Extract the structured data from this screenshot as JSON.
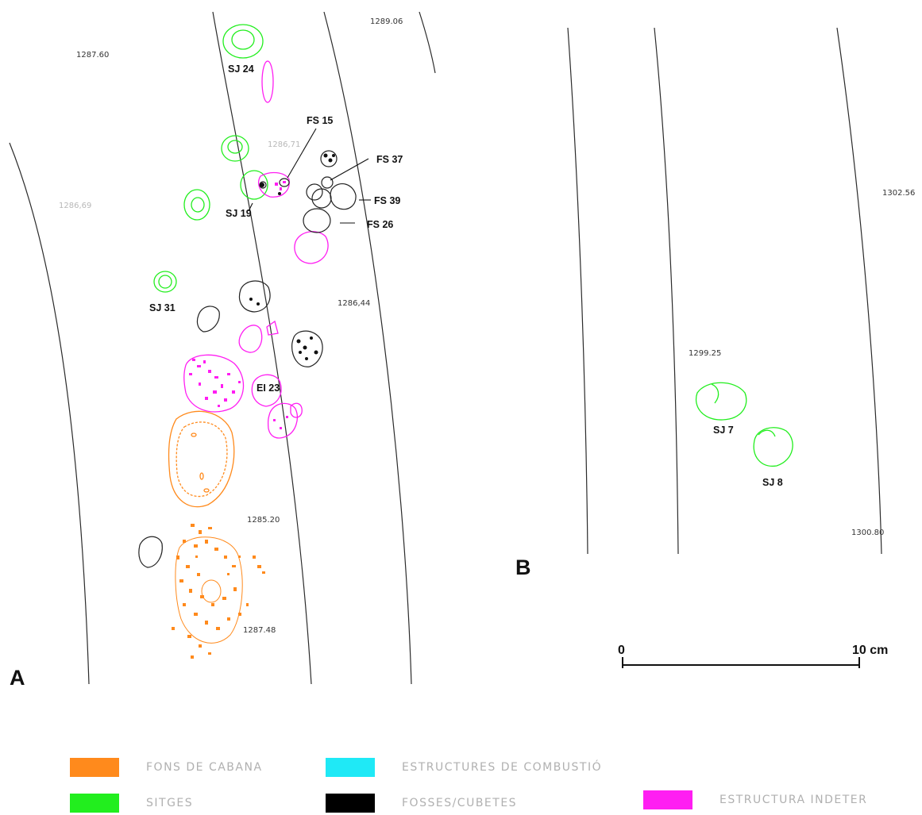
{
  "colors": {
    "fons_de_cabana": "#ff8a1c",
    "sitges": "#22ee1e",
    "estructures_de_combustio": "#1fe9f6",
    "fosses_cubetes": "#000000",
    "estructura_indeter": "#ff1ef2",
    "trench_line": "#2b2b2b"
  },
  "panels": {
    "a": "A",
    "b": "B"
  },
  "elevations": {
    "e1": "1287.60",
    "e2": "1289.06",
    "e3": "1286,71",
    "e4": "1286,69",
    "e5": "1286,44",
    "e6": "1285.20",
    "e7": "1287.48",
    "e8": "1302.56",
    "e9": "1299.25",
    "e10": "1300.80"
  },
  "features": {
    "sj24": "SJ 24",
    "fs15": "FS 15",
    "fs37": "FS 37",
    "fs39": "FS 39",
    "sj19": "SJ 19",
    "fs26": "FS 26",
    "sj31": "SJ 31",
    "ei23": "EI 23",
    "sj7": "SJ 7",
    "sj8": "SJ 8"
  },
  "scale_bar": {
    "start": "0",
    "end": "10 cm"
  },
  "legend": [
    {
      "label": "FONS DE CABANA",
      "color": "#ff8a1c"
    },
    {
      "label": "ESTRUCTURES DE COMBUSTIÓ",
      "color": "#1fe9f6"
    },
    {
      "label": "SITGES",
      "color": "#22ee1e"
    },
    {
      "label": "FOSSES/CUBETES",
      "color": "#000000"
    },
    {
      "label": "ESTRUCTURA INDETER",
      "color": "#ff1ef2"
    }
  ]
}
